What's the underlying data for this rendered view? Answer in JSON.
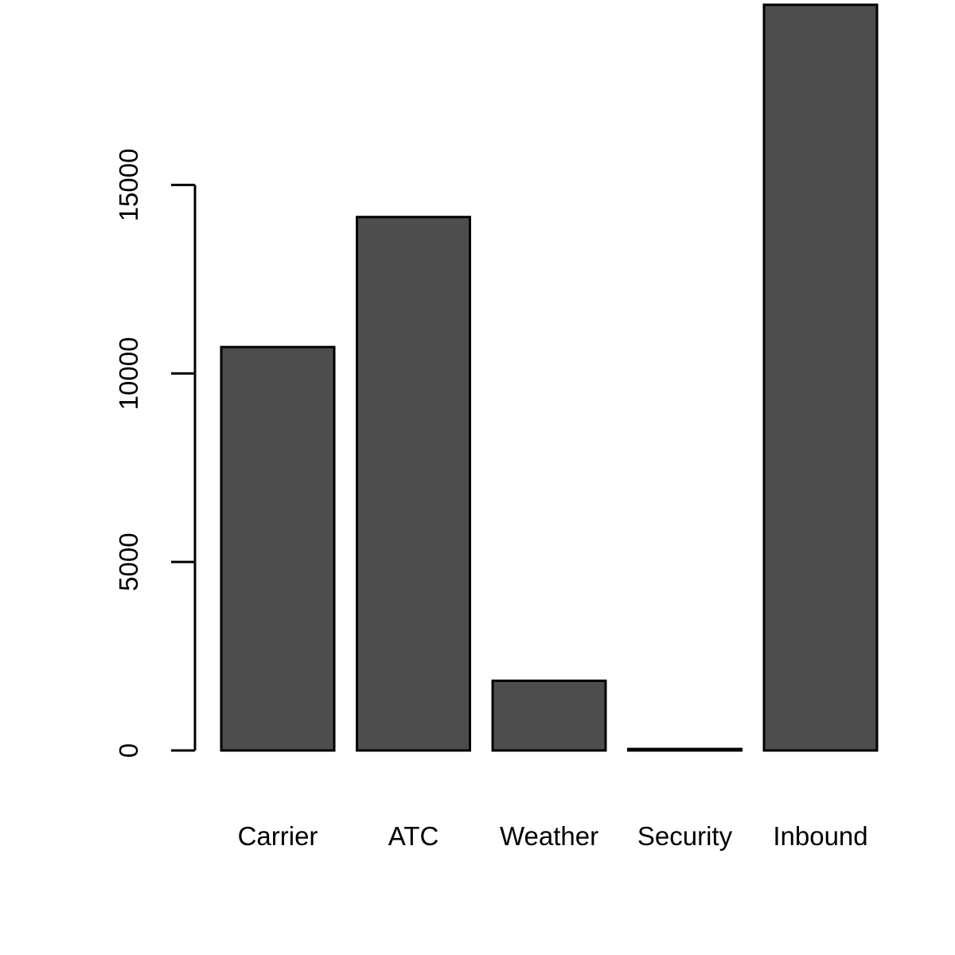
{
  "chart_data": {
    "type": "bar",
    "title": "",
    "xlabel": "",
    "ylabel": "",
    "categories": [
      "Carrier",
      "ATC",
      "Weather",
      "Security",
      "Inbound"
    ],
    "values": [
      10700,
      14150,
      1850,
      40,
      19780
    ],
    "ylim": [
      0,
      19780
    ],
    "yticks": [
      0,
      5000,
      10000,
      15000
    ],
    "ytick_labels": [
      "0",
      "5000",
      "10000",
      "15000"
    ],
    "grid": false,
    "legend": "none",
    "bar_color": "#4d4d4d",
    "bar_outline_color": "#000000"
  }
}
